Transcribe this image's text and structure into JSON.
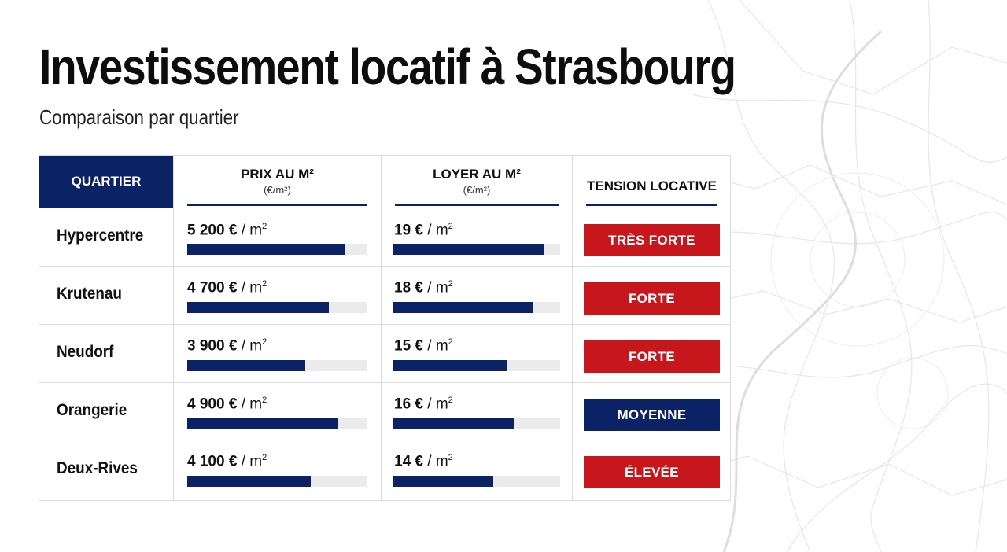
{
  "header": {
    "title": "Investissement locatif à Strasbourg",
    "subtitle": "Comparaison par quartier"
  },
  "table": {
    "columns": {
      "quartier": "QUARTIER",
      "prix": "PRIX AU M²",
      "prix_unit": "(€/m²)",
      "loyer": "LOYER AU M²",
      "loyer_unit": "(€/m²)",
      "tension": "TENSION LOCATIVE"
    },
    "value_unit": "/ m",
    "value_unit_sup": "2",
    "rows": [
      {
        "quartier": "Hypercentre",
        "prix": "5 200 €",
        "prix_level": 0.88,
        "loyer": "19 €",
        "loyer_level": 0.9,
        "tension": "TRÈS FORTE",
        "tension_color": "#c8161d"
      },
      {
        "quartier": "Krutenau",
        "prix": "4 700 €",
        "prix_level": 0.79,
        "loyer": "18 €",
        "loyer_level": 0.84,
        "tension": "FORTE",
        "tension_color": "#c8161d"
      },
      {
        "quartier": "Neudorf",
        "prix": "3 900 €",
        "prix_level": 0.66,
        "loyer": "15 €",
        "loyer_level": 0.68,
        "tension": "FORTE",
        "tension_color": "#c8161d"
      },
      {
        "quartier": "Orangerie",
        "prix": "4 900 €",
        "prix_level": 0.84,
        "loyer": "16 €",
        "loyer_level": 0.72,
        "tension": "MOYENNE",
        "tension_color": "#0b2265"
      },
      {
        "quartier": "Deux-Rives",
        "prix": "4 100 €",
        "prix_level": 0.69,
        "loyer": "14 €",
        "loyer_level": 0.6,
        "tension": "ÉLEVÉE",
        "tension_color": "#c8161d"
      }
    ]
  },
  "colors": {
    "navy": "#0b2265",
    "red": "#c8161d",
    "track": "#ebebeb"
  }
}
